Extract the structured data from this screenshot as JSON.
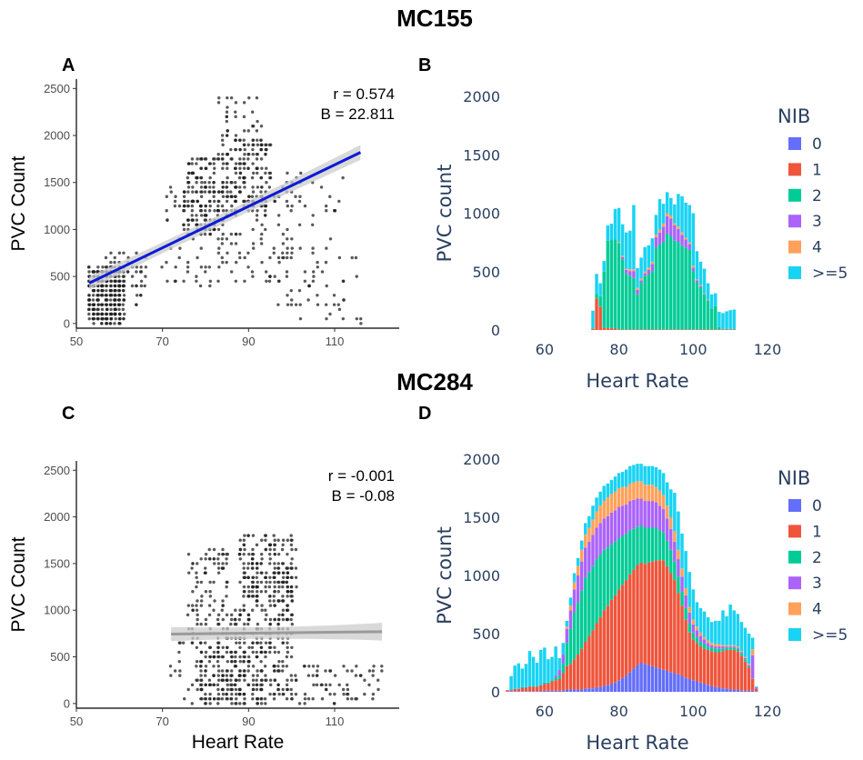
{
  "figure": {
    "titles": [
      "MC155",
      "MC284"
    ],
    "panel_labels": [
      "A",
      "B",
      "C",
      "D"
    ]
  },
  "colors": {
    "nib": {
      "0": "#636efa",
      "1": "#ef553b",
      "2": "#00cc96",
      "3": "#ab63fa",
      "4": "#ffa15a",
      ">=5": "#19d3f3"
    },
    "scatter_point": "#222222",
    "regression_A": "#0b1bd6",
    "regression_C": "#9a9a9a",
    "ci_band": "#cccccc",
    "plotly_text": "#2a3f5f"
  },
  "chart_data": [
    {
      "panel": "A",
      "group": "MC155",
      "type": "scatter",
      "xlabel": "",
      "ylabel": "PVC Count",
      "xlim": [
        50,
        125
      ],
      "ylim": [
        -50,
        2600
      ],
      "xticks": [
        50,
        70,
        90,
        110
      ],
      "yticks": [
        0,
        500,
        1000,
        1500,
        2000,
        2500
      ],
      "annotations": [
        "r = 0.574",
        "B = 22.811"
      ],
      "regression": {
        "x": [
          53,
          116
        ],
        "y": [
          430,
          1820
        ],
        "ci_half_width": [
          70,
          80
        ]
      },
      "point_clouds": [
        {
          "x": [
            53,
            61
          ],
          "y": [
            0,
            600
          ],
          "n": 320
        },
        {
          "x": [
            57,
            66
          ],
          "y": [
            200,
            750
          ],
          "n": 70
        },
        {
          "x": [
            75,
            84
          ],
          "y": [
            950,
            1800
          ],
          "n": 170
        },
        {
          "x": [
            84,
            95
          ],
          "y": [
            1200,
            2000
          ],
          "n": 170
        },
        {
          "x": [
            70,
            100
          ],
          "y": [
            400,
            1500
          ],
          "n": 160
        },
        {
          "x": [
            82,
            95
          ],
          "y": [
            1900,
            2450
          ],
          "n": 30
        },
        {
          "x": [
            95,
            116
          ],
          "y": [
            0,
            900
          ],
          "n": 60
        },
        {
          "x": [
            98,
            112
          ],
          "y": [
            900,
            1600
          ],
          "n": 25
        }
      ]
    },
    {
      "panel": "B",
      "group": "MC155",
      "type": "bar",
      "stacked": true,
      "xlabel": "Heart Rate",
      "ylabel": "PVC count",
      "xlim": [
        50,
        120
      ],
      "ylim": [
        0,
        2000
      ],
      "xticks": [
        60,
        80,
        100,
        120
      ],
      "yticks": [
        0,
        500,
        1000,
        1500,
        2000
      ],
      "bar_width": 1,
      "legend_title": "NIB",
      "categories": [
        "0",
        "1",
        "2",
        "3",
        "4",
        ">=5"
      ],
      "x": [
        73,
        74,
        75,
        76,
        77,
        78,
        79,
        80,
        81,
        82,
        83,
        84,
        85,
        86,
        87,
        88,
        89,
        90,
        91,
        92,
        93,
        94,
        95,
        96,
        97,
        98,
        99,
        100,
        101,
        102,
        103,
        104,
        105,
        106,
        107,
        108,
        109,
        110,
        111
      ],
      "series": [
        {
          "name": "0",
          "values": [
            0,
            0,
            0,
            0,
            0,
            0,
            0,
            0,
            0,
            0,
            0,
            0,
            0,
            0,
            0,
            0,
            0,
            0,
            0,
            0,
            0,
            0,
            0,
            0,
            0,
            0,
            0,
            0,
            0,
            0,
            0,
            0,
            0,
            0,
            0,
            0,
            0,
            0,
            0
          ]
        },
        {
          "name": "1",
          "values": [
            10,
            270,
            200,
            20,
            15,
            15,
            15,
            5,
            5,
            5,
            5,
            5,
            5,
            5,
            5,
            5,
            5,
            5,
            5,
            5,
            5,
            5,
            5,
            5,
            5,
            5,
            5,
            5,
            5,
            5,
            5,
            5,
            5,
            5,
            5,
            5,
            5,
            5,
            5
          ]
        },
        {
          "name": "2",
          "values": [
            5,
            40,
            90,
            480,
            750,
            755,
            760,
            740,
            600,
            480,
            460,
            440,
            300,
            400,
            460,
            470,
            500,
            700,
            730,
            750,
            820,
            800,
            760,
            750,
            720,
            700,
            680,
            500,
            400,
            360,
            300,
            250,
            180,
            200,
            20,
            5,
            5,
            5,
            5
          ]
        },
        {
          "name": "3",
          "values": [
            0,
            0,
            0,
            0,
            0,
            0,
            0,
            0,
            20,
            30,
            40,
            60,
            40,
            20,
            20,
            40,
            60,
            90,
            100,
            130,
            150,
            150,
            130,
            110,
            90,
            70,
            50,
            30,
            20,
            10,
            5,
            0,
            0,
            0,
            0,
            0,
            0,
            0,
            0
          ]
        },
        {
          "name": "4",
          "values": [
            0,
            0,
            0,
            0,
            0,
            0,
            0,
            10,
            10,
            10,
            15,
            15,
            15,
            15,
            15,
            20,
            20,
            20,
            25,
            25,
            25,
            25,
            20,
            20,
            20,
            15,
            15,
            15,
            10,
            10,
            5,
            5,
            0,
            0,
            0,
            0,
            0,
            0,
            0
          ]
        },
        {
          "name": ">=5",
          "values": [
            150,
            170,
            110,
            90,
            130,
            140,
            260,
            290,
            270,
            310,
            330,
            550,
            170,
            180,
            210,
            190,
            200,
            170,
            260,
            170,
            180,
            150,
            160,
            280,
            310,
            300,
            320,
            450,
            240,
            200,
            210,
            140,
            120,
            110,
            130,
            135,
            150,
            160,
            165
          ]
        }
      ]
    },
    {
      "panel": "C",
      "group": "MC284",
      "type": "scatter",
      "xlabel": "Heart Rate",
      "ylabel": "PVC Count",
      "xlim": [
        50,
        125
      ],
      "ylim": [
        -50,
        2600
      ],
      "xticks": [
        50,
        70,
        90,
        110
      ],
      "yticks": [
        0,
        500,
        1000,
        1500,
        2000,
        2500
      ],
      "annotations": [
        "r = -0.001",
        "B = -0.08"
      ],
      "regression": {
        "x": [
          72,
          121
        ],
        "y": [
          744,
          770
        ],
        "ci_half_width": [
          75,
          95
        ]
      },
      "point_clouds": [
        {
          "x": [
            76,
            86
          ],
          "y": [
            600,
            1650
          ],
          "n": 110
        },
        {
          "x": [
            78,
            88
          ],
          "y": [
            0,
            600
          ],
          "n": 140
        },
        {
          "x": [
            88,
            101
          ],
          "y": [
            1000,
            1800
          ],
          "n": 230
        },
        {
          "x": [
            86,
            100
          ],
          "y": [
            0,
            1000
          ],
          "n": 260
        },
        {
          "x": [
            100,
            121
          ],
          "y": [
            0,
            400
          ],
          "n": 70
        },
        {
          "x": [
            72,
            78
          ],
          "y": [
            0,
            700
          ],
          "n": 18
        }
      ]
    },
    {
      "panel": "D",
      "group": "MC284",
      "type": "bar",
      "stacked": true,
      "xlabel": "Heart Rate",
      "ylabel": "PVC count",
      "xlim": [
        50,
        120
      ],
      "ylim": [
        0,
        2000
      ],
      "xticks": [
        60,
        80,
        100,
        120
      ],
      "yticks": [
        0,
        500,
        1000,
        1500,
        2000
      ],
      "bar_width": 1,
      "legend_title": "NIB",
      "categories": [
        "0",
        "1",
        "2",
        "3",
        "4",
        ">=5"
      ],
      "x": [
        50,
        51,
        52,
        53,
        54,
        55,
        56,
        57,
        58,
        59,
        60,
        61,
        62,
        63,
        64,
        65,
        66,
        67,
        68,
        69,
        70,
        71,
        72,
        73,
        74,
        75,
        76,
        77,
        78,
        79,
        80,
        81,
        82,
        83,
        84,
        85,
        86,
        87,
        88,
        89,
        90,
        91,
        92,
        93,
        94,
        95,
        96,
        97,
        98,
        99,
        100,
        101,
        102,
        103,
        104,
        105,
        106,
        107,
        108,
        109,
        110,
        111,
        112,
        113,
        114,
        115,
        116,
        117
      ],
      "series": [
        {
          "name": "0",
          "values": [
            5,
            5,
            5,
            5,
            5,
            5,
            5,
            5,
            5,
            5,
            10,
            10,
            10,
            10,
            10,
            10,
            20,
            20,
            20,
            20,
            20,
            30,
            30,
            30,
            40,
            40,
            50,
            60,
            70,
            80,
            100,
            120,
            140,
            170,
            200,
            230,
            250,
            240,
            230,
            220,
            210,
            200,
            190,
            180,
            170,
            160,
            150,
            140,
            120,
            110,
            100,
            90,
            80,
            70,
            60,
            50,
            40,
            40,
            30,
            30,
            20,
            20,
            20,
            10,
            10,
            10,
            10,
            5
          ]
        },
        {
          "name": "1",
          "values": [
            10,
            10,
            20,
            20,
            30,
            30,
            40,
            40,
            40,
            50,
            60,
            60,
            80,
            90,
            100,
            150,
            200,
            220,
            260,
            300,
            350,
            400,
            450,
            500,
            550,
            600,
            650,
            680,
            720,
            750,
            780,
            800,
            820,
            840,
            850,
            860,
            860,
            860,
            880,
            900,
            920,
            930,
            940,
            900,
            850,
            800,
            700,
            600,
            500,
            400,
            350,
            330,
            310,
            300,
            300,
            300,
            300,
            300,
            320,
            330,
            340,
            340,
            330,
            300,
            250,
            200,
            100,
            20
          ]
        },
        {
          "name": "2",
          "values": [
            0,
            0,
            0,
            0,
            5,
            5,
            5,
            5,
            5,
            5,
            10,
            10,
            10,
            20,
            30,
            80,
            200,
            300,
            400,
            450,
            500,
            550,
            550,
            550,
            550,
            540,
            520,
            500,
            480,
            460,
            440,
            420,
            400,
            380,
            350,
            330,
            320,
            310,
            300,
            290,
            280,
            260,
            240,
            220,
            200,
            160,
            140,
            120,
            100,
            80,
            60,
            50,
            40,
            40,
            30,
            30,
            30,
            30,
            20,
            20,
            20,
            20,
            20,
            20,
            20,
            10,
            5,
            0
          ]
        },
        {
          "name": "3",
          "values": [
            0,
            0,
            0,
            0,
            0,
            0,
            0,
            0,
            0,
            0,
            0,
            0,
            0,
            20,
            50,
            80,
            120,
            160,
            200,
            230,
            250,
            260,
            260,
            270,
            270,
            270,
            270,
            270,
            270,
            270,
            270,
            260,
            250,
            250,
            250,
            240,
            230,
            230,
            230,
            230,
            220,
            210,
            200,
            190,
            180,
            170,
            150,
            130,
            110,
            90,
            70,
            60,
            50,
            40,
            30,
            20,
            20,
            20,
            20,
            10,
            10,
            10,
            10,
            10,
            10,
            10,
            200,
            10
          ]
        },
        {
          "name": "4",
          "values": [
            0,
            0,
            0,
            0,
            0,
            0,
            0,
            0,
            0,
            0,
            0,
            0,
            0,
            0,
            0,
            0,
            20,
            40,
            60,
            80,
            100,
            110,
            120,
            130,
            140,
            150,
            150,
            160,
            160,
            160,
            160,
            160,
            150,
            150,
            150,
            150,
            150,
            140,
            140,
            140,
            130,
            130,
            120,
            110,
            100,
            90,
            80,
            70,
            60,
            50,
            40,
            30,
            30,
            20,
            20,
            20,
            20,
            20,
            10,
            10,
            10,
            10,
            10,
            10,
            10,
            10,
            50,
            0
          ]
        },
        {
          "name": ">=5",
          "values": [
            0,
            120,
            200,
            220,
            160,
            200,
            300,
            250,
            200,
            300,
            300,
            200,
            200,
            250,
            100,
            100,
            50,
            70,
            80,
            70,
            80,
            100,
            100,
            120,
            120,
            120,
            130,
            120,
            120,
            130,
            130,
            130,
            150,
            150,
            150,
            150,
            150,
            160,
            160,
            160,
            170,
            180,
            190,
            200,
            240,
            330,
            330,
            300,
            320,
            300,
            260,
            210,
            210,
            220,
            200,
            180,
            200,
            200,
            300,
            250,
            350,
            300,
            280,
            250,
            250,
            260,
            100,
            10
          ]
        }
      ]
    }
  ]
}
